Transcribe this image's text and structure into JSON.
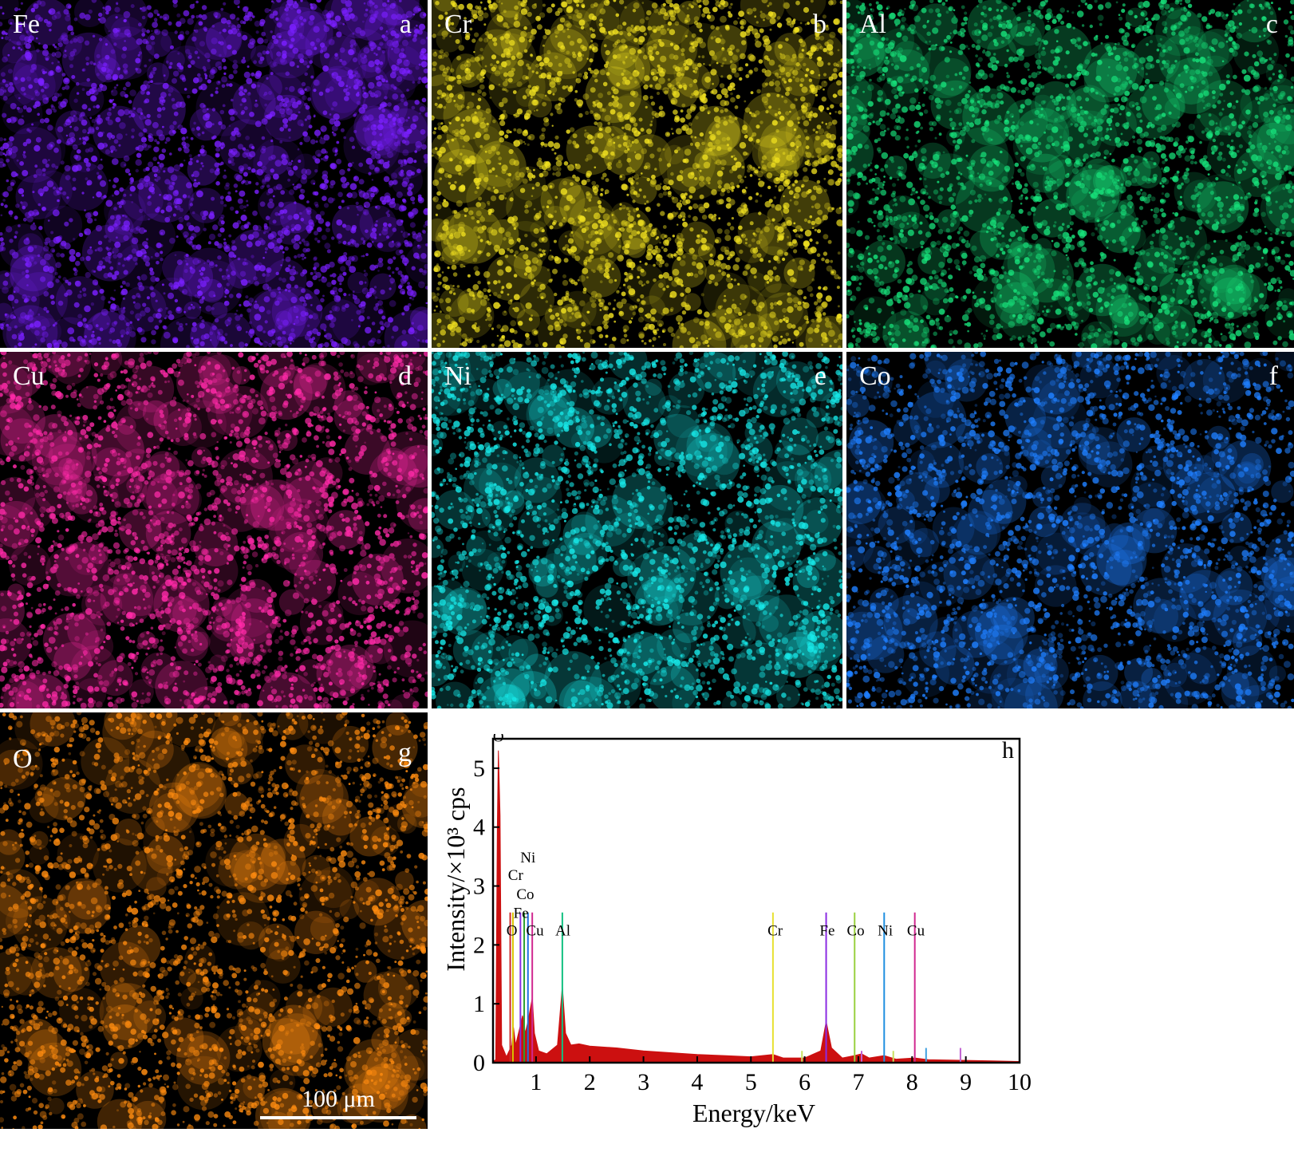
{
  "panels": [
    {
      "element": "Fe",
      "letter": "a",
      "color": "#7a1fff"
    },
    {
      "element": "Cr",
      "letter": "b",
      "color": "#f0e020"
    },
    {
      "element": "Al",
      "letter": "c",
      "color": "#17e07a"
    },
    {
      "element": "Cu",
      "letter": "d",
      "color": "#ff2aa8"
    },
    {
      "element": "Ni",
      "letter": "e",
      "color": "#17e8e8"
    },
    {
      "element": "Co",
      "letter": "f",
      "color": "#1f7fff"
    },
    {
      "element": "O",
      "letter": "g",
      "color": "#ff8c10"
    }
  ],
  "scale_bar": {
    "label": "100 μm"
  },
  "chart_data": {
    "type": "line",
    "panel_letter": "h",
    "xlabel": "Energy/keV",
    "ylabel": "Intensity/×10³ cps",
    "xlim": [
      0.2,
      10
    ],
    "ylim": [
      0,
      5.5
    ],
    "xticks": [
      1,
      2,
      3,
      4,
      5,
      6,
      7,
      8,
      9,
      10
    ],
    "yticks": [
      0,
      1,
      2,
      3,
      4,
      5
    ],
    "spectrum_color": "#cc1010",
    "spectrum": [
      [
        0.2,
        0.02
      ],
      [
        0.25,
        0.05
      ],
      [
        0.28,
        4.0
      ],
      [
        0.3,
        5.3
      ],
      [
        0.33,
        4.2
      ],
      [
        0.36,
        0.3
      ],
      [
        0.45,
        0.1
      ],
      [
        0.55,
        0.3
      ],
      [
        0.58,
        0.6
      ],
      [
        0.62,
        0.3
      ],
      [
        0.7,
        0.6
      ],
      [
        0.75,
        0.8
      ],
      [
        0.8,
        0.5
      ],
      [
        0.85,
        0.7
      ],
      [
        0.93,
        1.1
      ],
      [
        0.97,
        0.5
      ],
      [
        1.05,
        0.2
      ],
      [
        1.2,
        0.15
      ],
      [
        1.4,
        0.3
      ],
      [
        1.49,
        1.3
      ],
      [
        1.55,
        0.5
      ],
      [
        1.65,
        0.3
      ],
      [
        1.8,
        0.32
      ],
      [
        2.0,
        0.28
      ],
      [
        2.5,
        0.25
      ],
      [
        3.0,
        0.2
      ],
      [
        3.5,
        0.17
      ],
      [
        4.0,
        0.14
      ],
      [
        4.5,
        0.12
      ],
      [
        5.0,
        0.1
      ],
      [
        5.41,
        0.14
      ],
      [
        5.6,
        0.08
      ],
      [
        6.0,
        0.08
      ],
      [
        6.3,
        0.2
      ],
      [
        6.4,
        0.7
      ],
      [
        6.5,
        0.25
      ],
      [
        6.7,
        0.08
      ],
      [
        6.93,
        0.12
      ],
      [
        7.06,
        0.15
      ],
      [
        7.2,
        0.08
      ],
      [
        7.48,
        0.12
      ],
      [
        7.7,
        0.06
      ],
      [
        8.05,
        0.08
      ],
      [
        8.3,
        0.05
      ],
      [
        8.9,
        0.04
      ],
      [
        9.5,
        0.03
      ],
      [
        10.0,
        0.02
      ]
    ],
    "element_markers": [
      {
        "label": "O",
        "energy": 0.52,
        "color": "#cc2a2a",
        "height": 2.55
      },
      {
        "label": "Cr",
        "energy": 0.57,
        "color": "#d8c400",
        "height": 2.55
      },
      {
        "label": "Fe",
        "energy": 0.71,
        "color": "#8a2be2",
        "height": 2.55
      },
      {
        "label": "Co",
        "energy": 0.78,
        "color": "#2e9e2e",
        "height": 2.55
      },
      {
        "label": "Ni",
        "energy": 0.85,
        "color": "#1f6fe0",
        "height": 2.55
      },
      {
        "label": "Cu",
        "energy": 0.93,
        "color": "#d02890",
        "height": 2.55
      },
      {
        "label": "Al",
        "energy": 1.49,
        "color": "#10c080",
        "height": 2.55
      },
      {
        "label": "Cr",
        "energy": 5.41,
        "color": "#e8e030",
        "height": 2.55
      },
      {
        "label": "Fe",
        "energy": 6.4,
        "color": "#8a2be2",
        "height": 2.55
      },
      {
        "label": "Co",
        "energy": 6.93,
        "color": "#9ad040",
        "height": 2.55
      },
      {
        "label": "Ni",
        "energy": 7.48,
        "color": "#1f8fe0",
        "height": 2.55
      },
      {
        "label": "Cu",
        "energy": 8.05,
        "color": "#d02890",
        "height": 2.55
      }
    ],
    "minor_lines": [
      {
        "energy": 5.95,
        "color": "#c8e060",
        "height": 0.2
      },
      {
        "energy": 7.06,
        "color": "#c060d0",
        "height": 0.2
      },
      {
        "energy": 7.65,
        "color": "#c8e060",
        "height": 0.2
      },
      {
        "energy": 8.26,
        "color": "#40a0e0",
        "height": 0.25
      },
      {
        "energy": 8.9,
        "color": "#c060d0",
        "height": 0.25
      }
    ],
    "peak_labels": [
      {
        "text": "O",
        "energy": 0.3,
        "value": 5.45
      },
      {
        "text": "Ni",
        "energy": 0.85,
        "value": 3.4
      },
      {
        "text": "Cr",
        "energy": 0.62,
        "value": 3.1
      },
      {
        "text": "Co",
        "energy": 0.8,
        "value": 2.78
      },
      {
        "text": "Fe",
        "energy": 0.72,
        "value": 2.46
      },
      {
        "text": "O",
        "energy": 0.55,
        "value": 2.16
      },
      {
        "text": "Cu",
        "energy": 0.98,
        "value": 2.16
      },
      {
        "text": "Al",
        "energy": 1.5,
        "value": 2.16
      },
      {
        "text": "Cr",
        "energy": 5.45,
        "value": 2.16
      },
      {
        "text": "Fe",
        "energy": 6.42,
        "value": 2.16
      },
      {
        "text": "Co",
        "energy": 6.95,
        "value": 2.16
      },
      {
        "text": "Ni",
        "energy": 7.5,
        "value": 2.16
      },
      {
        "text": "Cu",
        "energy": 8.07,
        "value": 2.16
      }
    ]
  }
}
